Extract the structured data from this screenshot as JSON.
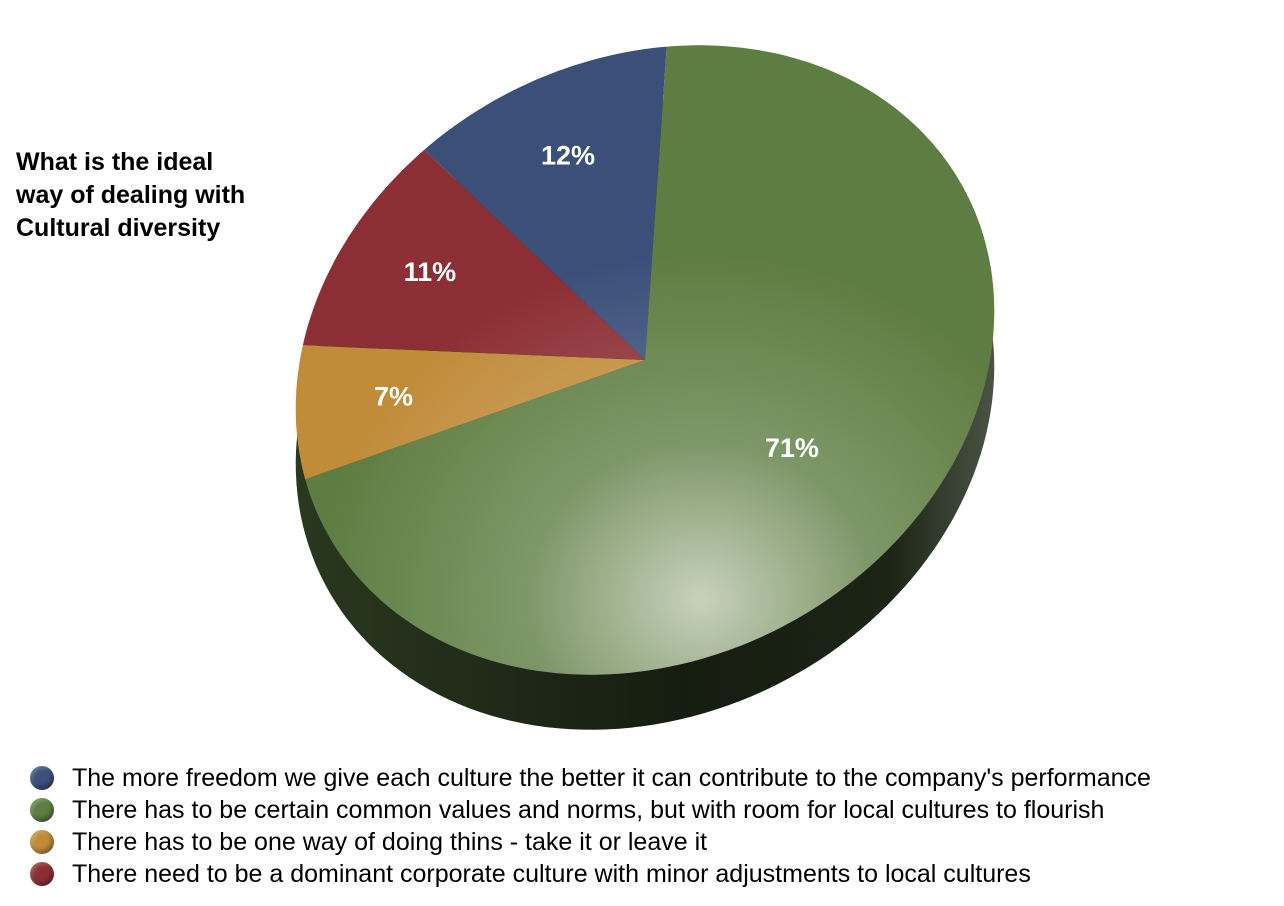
{
  "chart_data": {
    "type": "pie",
    "title": "What is the ideal\nway of dealing with\nCultural diversity",
    "slices": [
      {
        "label": "The more freedom we give each culture the better it can contribute to the company's performance",
        "value": 12,
        "display": "12%",
        "color": "#3b4f79"
      },
      {
        "label": "There has to be certain common values and norms, but with room for local cultures to flourish",
        "value": 71,
        "display": "71%",
        "color": "#5e7d42"
      },
      {
        "label": "There has to be one way of doing thins - take it or leave it",
        "value": 7,
        "display": "7%",
        "color": "#c08c3a"
      },
      {
        "label": "There need to be a dominant corporate culture with minor adjustments to local cultures",
        "value": 11,
        "display": "11%",
        "color": "#8c2f34"
      }
    ],
    "legend_position": "bottom"
  }
}
